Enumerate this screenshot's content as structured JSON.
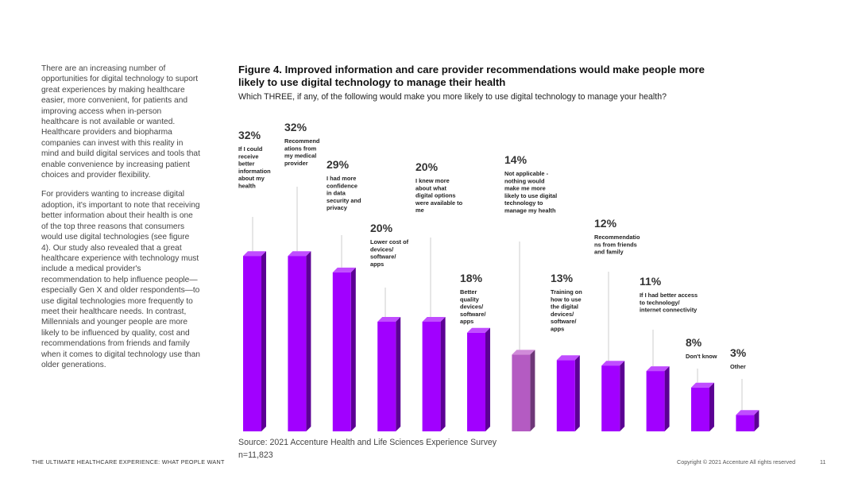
{
  "intro": {
    "paragraph1": "There are an increasing number of opportunities for digital technology to suport great experiences by making healthcare easier, more convenient, for patients and improving access when in-person healthcare is not available or wanted. Healthcare providers and biopharma companies can invest with this reality in mind and build digital services and tools that enable convenience by increasing patient choices and provider flexibility.",
    "paragraph2": "For providers wanting to increase digital adoption, it's important to note that receiving better information about their health is one of the top three reasons that consumers would use digital technologies (see figure 4). Our study also revealed that a great healthcare experience with technology must include a medical provider's recommendation to help influence people—especially Gen X and older respondents—to use digital technologies more frequently to meet their healthcare needs. In contrast, Millennials and younger people are more likely to be influenced by quality, cost and recommendations from friends and family when it comes to digital technology use than older generations."
  },
  "chart_data": {
    "type": "bar",
    "title": "Figure 4. Improved information and care provider recommendations would make people more likely to use digital technology to manage their health",
    "subtitle": "Which THREE, if any, of the following would make you more likely to use digital technology to manage your health?",
    "unit": "%",
    "ylim": [
      0,
      35
    ],
    "categories": [
      "If I could receive better information about my health",
      "Recommendations from my medical provider",
      "I had more confidence in data security and privacy",
      "Lower cost of devices/ software/ apps",
      "I knew more about what digital options were available to me",
      "Better quality devices/ software/ apps",
      "Not applicable - nothing would make me more likely to use digital technology to manage my health",
      "Training on how to use the digital devices/ software/ apps",
      "Recommendations from friends and family",
      "If I had better access to technology/ internet connectivity",
      "Don't know",
      "Other"
    ],
    "label_lines": [
      [
        "If I could",
        "receive",
        "better",
        "information",
        "about my",
        "health"
      ],
      [
        "Recommend",
        "ations from",
        "my medical",
        "provider"
      ],
      [
        "I had more",
        "confidence",
        "in data",
        "security and",
        "privacy"
      ],
      [
        "Lower cost of",
        "devices/",
        "software/",
        "apps"
      ],
      [
        "I knew more",
        "about what",
        "digital options",
        "were available to",
        "me"
      ],
      [
        "Better",
        "quality",
        "devices/",
        "software/",
        "apps"
      ],
      [
        "Not applicable -",
        "nothing would",
        "make me more",
        "likely to use digital",
        "technology to",
        "manage my health"
      ],
      [
        "Training on",
        "how to use",
        "the digital",
        "devices/",
        "software/",
        "apps"
      ],
      [
        "Recommendatio",
        "ns from friends",
        "and family"
      ],
      [
        "If I had better access",
        "to technology/",
        "internet connectivity"
      ],
      [
        "Don't know"
      ],
      [
        "Other"
      ]
    ],
    "values": [
      32,
      32,
      29,
      20,
      20,
      18,
      14,
      13,
      12,
      11,
      8,
      3
    ],
    "value_labels": [
      "32%",
      "32%",
      "29%",
      "20%",
      "20%",
      "18%",
      "14%",
      "13%",
      "12%",
      "11%",
      "8%",
      "3%"
    ],
    "colors": {
      "bar_front": "#a100ff",
      "bar_side": "#5c0094",
      "bar_top": "#c04dff",
      "highlight_front": "#b45bc2",
      "highlight_side": "#6e3778",
      "highlight_top": "#d08bd9",
      "leader": "#cccccc"
    },
    "highlight_index": 6
  },
  "source": "Source: 2021 Accenture Health and Life Sciences Experience Survey",
  "sample": "n=11,823",
  "footer": {
    "left": "THE ULTIMATE HEALTHCARE EXPERIENCE: WHAT PEOPLE WANT",
    "right": "Copyright © 2021 Accenture All rights reserved",
    "page": "11"
  }
}
